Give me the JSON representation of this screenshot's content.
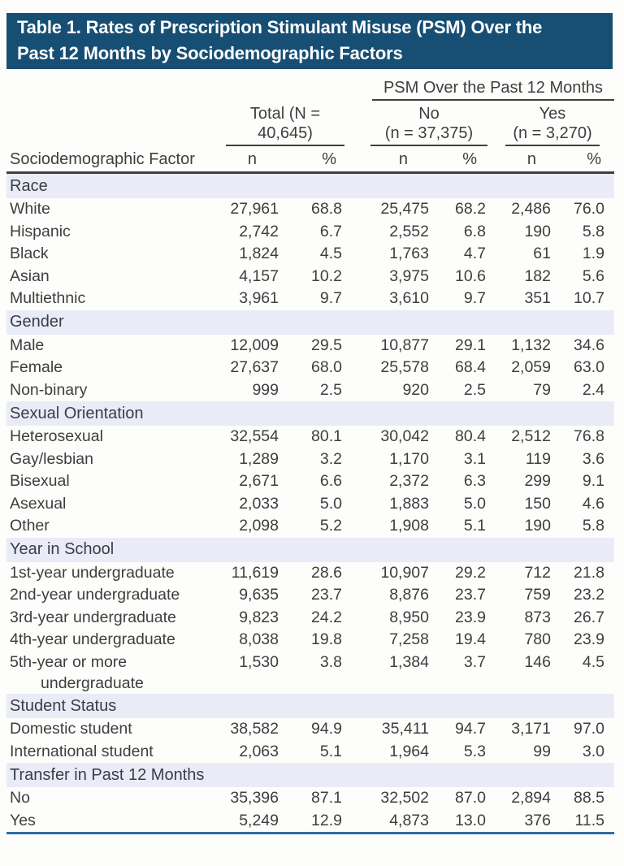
{
  "title": {
    "line1": "Table 1. Rates of Prescription Stimulant Misuse (PSM) Over the",
    "line2": "Past 12 Months by Sociodemographic Factors"
  },
  "colors": {
    "title_bg": "#174e74",
    "title_text": "#ffffff",
    "section_band_bg": "#e9ecf7",
    "header_rule_dark": "#404040",
    "bottom_rule_blue": "#2e6ca3",
    "body_text": "#3e3e3e"
  },
  "header": {
    "psm_group": "PSM Over the Past 12 Months",
    "total": "Total (N = 40,645)",
    "no_line1": "No",
    "no_line2": "(n = 37,375)",
    "yes_line1": "Yes",
    "yes_line2": "(n = 3,270)",
    "factor": "Sociodemographic Factor",
    "n": "n",
    "pct": "%"
  },
  "sections": [
    {
      "label": "Race",
      "rows": [
        {
          "label": "White",
          "values": [
            "27,961",
            "68.8",
            "25,475",
            "68.2",
            "2,486",
            "76.0"
          ]
        },
        {
          "label": "Hispanic",
          "values": [
            "2,742",
            "6.7",
            "2,552",
            "6.8",
            "190",
            "5.8"
          ]
        },
        {
          "label": "Black",
          "values": [
            "1,824",
            "4.5",
            "1,763",
            "4.7",
            "61",
            "1.9"
          ]
        },
        {
          "label": "Asian",
          "values": [
            "4,157",
            "10.2",
            "3,975",
            "10.6",
            "182",
            "5.6"
          ]
        },
        {
          "label": "Multiethnic",
          "values": [
            "3,961",
            "9.7",
            "3,610",
            "9.7",
            "351",
            "10.7"
          ]
        }
      ]
    },
    {
      "label": "Gender",
      "rows": [
        {
          "label": "Male",
          "values": [
            "12,009",
            "29.5",
            "10,877",
            "29.1",
            "1,132",
            "34.6"
          ]
        },
        {
          "label": "Female",
          "values": [
            "27,637",
            "68.0",
            "25,578",
            "68.4",
            "2,059",
            "63.0"
          ]
        },
        {
          "label": "Non-binary",
          "values": [
            "999",
            "2.5",
            "920",
            "2.5",
            "79",
            "2.4"
          ]
        }
      ]
    },
    {
      "label": "Sexual Orientation",
      "rows": [
        {
          "label": "Heterosexual",
          "values": [
            "32,554",
            "80.1",
            "30,042",
            "80.4",
            "2,512",
            "76.8"
          ]
        },
        {
          "label": "Gay/lesbian",
          "values": [
            "1,289",
            "3.2",
            "1,170",
            "3.1",
            "119",
            "3.6"
          ]
        },
        {
          "label": "Bisexual",
          "values": [
            "2,671",
            "6.6",
            "2,372",
            "6.3",
            "299",
            "9.1"
          ]
        },
        {
          "label": "Asexual",
          "values": [
            "2,033",
            "5.0",
            "1,883",
            "5.0",
            "150",
            "4.6"
          ]
        },
        {
          "label": "Other",
          "values": [
            "2,098",
            "5.2",
            "1,908",
            "5.1",
            "190",
            "5.8"
          ]
        }
      ]
    },
    {
      "label": "Year in School",
      "rows": [
        {
          "label": "1st-year undergraduate",
          "values": [
            "11,619",
            "28.6",
            "10,907",
            "29.2",
            "712",
            "21.8"
          ]
        },
        {
          "label": "2nd-year undergraduate",
          "values": [
            "9,635",
            "23.7",
            "8,876",
            "23.7",
            "759",
            "23.2"
          ]
        },
        {
          "label": "3rd-year undergraduate",
          "values": [
            "9,823",
            "24.2",
            "8,950",
            "23.9",
            "873",
            "26.7"
          ]
        },
        {
          "label": "4th-year undergraduate",
          "values": [
            "8,038",
            "19.8",
            "7,258",
            "19.4",
            "780",
            "23.9"
          ]
        },
        {
          "label": "5th-year or more",
          "label2": "undergraduate",
          "values": [
            "1,530",
            "3.8",
            "1,384",
            "3.7",
            "146",
            "4.5"
          ]
        }
      ]
    },
    {
      "label": "Student Status",
      "rows": [
        {
          "label": "Domestic student",
          "values": [
            "38,582",
            "94.9",
            "35,411",
            "94.7",
            "3,171",
            "97.0"
          ]
        },
        {
          "label": "International student",
          "values": [
            "2,063",
            "5.1",
            "1,964",
            "5.3",
            "99",
            "3.0"
          ]
        }
      ]
    },
    {
      "label": "Transfer in Past 12 Months",
      "rows": [
        {
          "label": "No",
          "values": [
            "35,396",
            "87.1",
            "32,502",
            "87.0",
            "2,894",
            "88.5"
          ]
        },
        {
          "label": "Yes",
          "values": [
            "5,249",
            "12.9",
            "4,873",
            "13.0",
            "376",
            "11.5"
          ]
        }
      ]
    }
  ]
}
